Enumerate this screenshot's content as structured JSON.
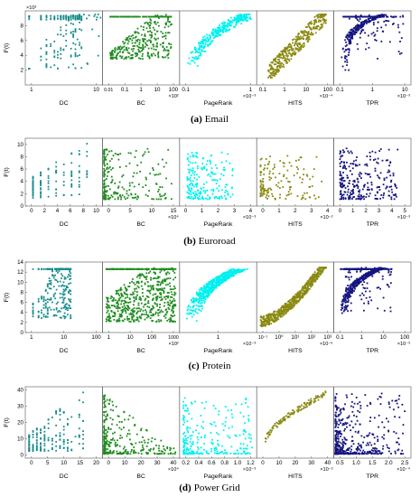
{
  "figure": {
    "colors": [
      "#1a8c8c",
      "#1f8c1f",
      "#00f0f0",
      "#8a8a12",
      "#141480"
    ],
    "panel_xlabels": [
      "DC",
      "BC",
      "PageRank",
      "HITS",
      "TPR"
    ],
    "ylabel": "F(t)"
  },
  "chart_data": [
    {
      "type": "scatter",
      "caption_letter": "(a)",
      "caption_text": "Email",
      "ylabel": "F(t)",
      "y_axis": {
        "ticks": [
          2,
          4,
          6,
          8
        ],
        "ylim": [
          0,
          10
        ],
        "multiplier": "×10²"
      },
      "panels": [
        {
          "xlabel": "DC",
          "xscale": "log",
          "xlim": [
            0.8,
            150
          ],
          "xticks": [
            "1",
            "10"
          ],
          "multiplier": ""
        },
        {
          "xlabel": "BC",
          "xscale": "log",
          "xlim": [
            0.005,
            400
          ],
          "xticks": [
            "0.01",
            "0.1",
            "1",
            "10",
            "100"
          ],
          "multiplier": "×10²"
        },
        {
          "xlabel": "PageRank",
          "xscale": "log",
          "xlim": [
            0.05,
            8
          ],
          "xticks": [
            "0.1",
            "1"
          ],
          "multiplier": "×10⁻³"
        },
        {
          "xlabel": "HITS",
          "xscale": "log",
          "xlim": [
            0.05,
            400
          ],
          "xticks": [
            "0.1",
            "1",
            "10",
            "100"
          ],
          "multiplier": "×10⁻⁴"
        },
        {
          "xlabel": "TPR",
          "xscale": "log",
          "xlim": [
            0.08,
            15
          ],
          "xticks": [
            "0.1",
            "1",
            "10"
          ],
          "multiplier": "×10⁻³"
        }
      ]
    },
    {
      "type": "scatter",
      "caption_letter": "(b)",
      "caption_text": "Euroroad",
      "ylabel": "F(t)",
      "y_axis": {
        "ticks": [
          0,
          2,
          4,
          6,
          8,
          10
        ],
        "ylim": [
          0,
          11
        ],
        "multiplier": ""
      },
      "panels": [
        {
          "xlabel": "DC",
          "xscale": "linear",
          "xlim": [
            0,
            10
          ],
          "xticks": [
            "0",
            "2",
            "4",
            "6",
            "8",
            "10"
          ],
          "multiplier": ""
        },
        {
          "xlabel": "BC",
          "xscale": "linear",
          "xlim": [
            0,
            15
          ],
          "xticks": [
            "0",
            "5",
            "10",
            "15"
          ],
          "multiplier": "×10⁴"
        },
        {
          "xlabel": "PageRank",
          "xscale": "linear",
          "xlim": [
            0,
            4
          ],
          "xticks": [
            "0",
            "1",
            "2",
            "3",
            "4"
          ],
          "multiplier": "×10⁻³"
        },
        {
          "xlabel": "HITS",
          "xscale": "linear",
          "xlim": [
            0,
            4.5
          ],
          "xticks": [
            "0",
            "1",
            "2",
            "3",
            "4"
          ],
          "multiplier": "×10⁻²"
        },
        {
          "xlabel": "TPR",
          "xscale": "linear",
          "xlim": [
            0,
            5
          ],
          "xticks": [
            "0",
            "1",
            "2",
            "3",
            "4",
            "5"
          ],
          "multiplier": "×10⁻³"
        }
      ]
    },
    {
      "type": "scatter",
      "caption_letter": "(c)",
      "caption_text": "Protein",
      "ylabel": "F(t)",
      "y_axis": {
        "ticks": [
          0,
          2,
          4,
          6,
          8,
          10,
          12,
          14
        ],
        "ylim": [
          0,
          14
        ],
        "multiplier": ""
      },
      "panels": [
        {
          "xlabel": "DC",
          "xscale": "log",
          "xlim": [
            0.7,
            200
          ],
          "xticks": [
            "1",
            "10",
            "100"
          ],
          "multiplier": ""
        },
        {
          "xlabel": "BC",
          "xscale": "log",
          "xlim": [
            0.05,
            3000
          ],
          "xticks": [
            "1",
            "10",
            "100",
            "1000"
          ],
          "multiplier": "×10²"
        },
        {
          "xlabel": "PageRank",
          "xscale": "log",
          "xlim": [
            0.1,
            10
          ],
          "xticks": [
            "1"
          ],
          "multiplier": "×10⁻³"
        },
        {
          "xlabel": "HITS",
          "xscale": "log",
          "xlim": [
            0.03,
            5000
          ],
          "xticks": [
            "10⁻¹",
            "10⁰",
            "10¹",
            "10²",
            "10³"
          ],
          "multiplier": "×10⁻⁶"
        },
        {
          "xlabel": "TPR",
          "xscale": "log",
          "xlim": [
            0.08,
            150
          ],
          "xticks": [
            "0.1",
            "1",
            "10",
            "100"
          ],
          "multiplier": "×10⁻³"
        }
      ]
    },
    {
      "type": "scatter",
      "caption_letter": "(d)",
      "caption_text": "Power Grid",
      "ylabel": "F(t)",
      "y_axis": {
        "ticks": [
          0,
          10,
          20,
          30,
          40
        ],
        "ylim": [
          -2,
          42
        ],
        "multiplier": ""
      },
      "panels": [
        {
          "xlabel": "DC",
          "xscale": "linear",
          "xlim": [
            0,
            20
          ],
          "xticks": [
            "0",
            "5",
            "10",
            "15",
            "20"
          ],
          "multiplier": ""
        },
        {
          "xlabel": "BC",
          "xscale": "linear",
          "xlim": [
            0,
            40
          ],
          "xticks": [
            "0",
            "10",
            "20",
            "30",
            "40"
          ],
          "multiplier": "×10⁴"
        },
        {
          "xlabel": "PageRank",
          "xscale": "linear",
          "xlim": [
            0,
            1.2
          ],
          "xticks": [
            "0.2",
            "0.4",
            "0.6",
            "0.8",
            "1.0",
            "1.2"
          ],
          "multiplier": "×10⁻³"
        },
        {
          "xlabel": "HITS",
          "xscale": "linear",
          "xlim": [
            0,
            45
          ],
          "xticks": [
            "0",
            "10",
            "20",
            "30",
            "40"
          ],
          "multiplier": "×10⁻²"
        },
        {
          "xlabel": "TPR",
          "xscale": "linear",
          "xlim": [
            0.5,
            2.5
          ],
          "xticks": [
            "0.5",
            "1.0",
            "1.5",
            "2.0",
            "2.5"
          ],
          "multiplier": "×10⁻⁴"
        }
      ]
    }
  ]
}
